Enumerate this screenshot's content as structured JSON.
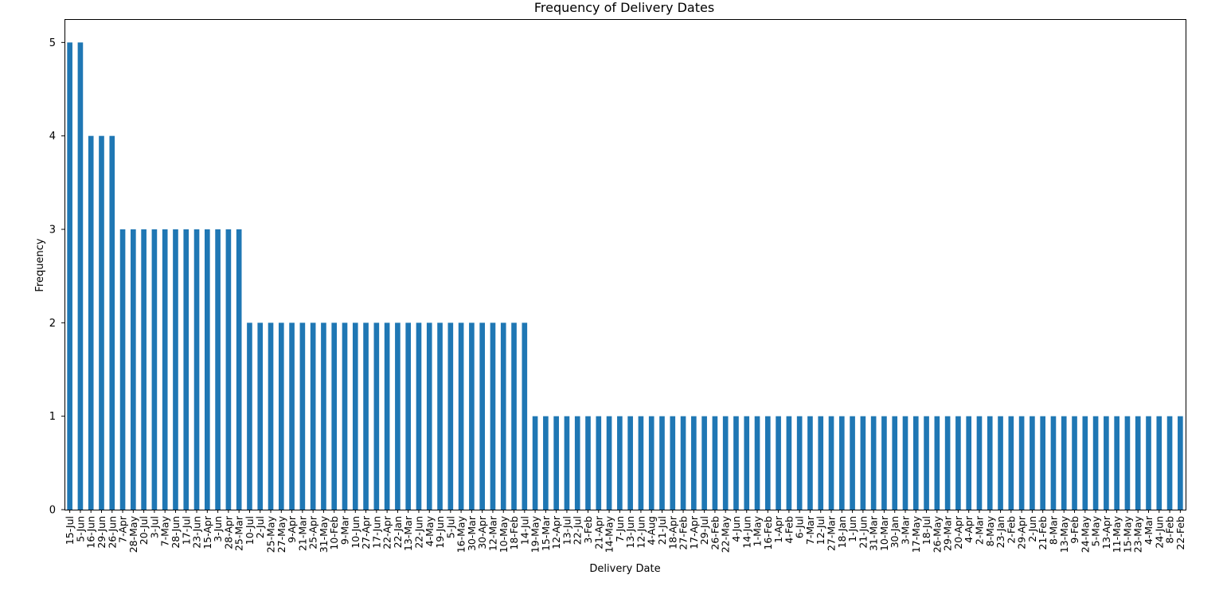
{
  "chart_data": {
    "type": "bar",
    "title": "Frequency of Delivery Dates",
    "xlabel": "Delivery Date",
    "ylabel": "Frequency",
    "ylim": [
      0,
      5.25
    ],
    "yticks": [
      0,
      1,
      2,
      3,
      4,
      5
    ],
    "grid": false,
    "bar_color": "#1f77b4",
    "categories": [
      "15-Jul",
      "5-Jun",
      "16-Jun",
      "29-Jun",
      "26-Jun",
      "7-Apr",
      "28-May",
      "20-Jul",
      "3-Jul",
      "7-May",
      "28-Jun",
      "17-Jul",
      "23-Jun",
      "15-Apr",
      "3-Jun",
      "28-Apr",
      "25-Mar",
      "10-Jul",
      "2-Jul",
      "25-May",
      "27-May",
      "9-Apr",
      "21-Mar",
      "25-Apr",
      "31-May",
      "10-Feb",
      "9-Mar",
      "10-Jun",
      "27-Apr",
      "17-Jun",
      "22-Apr",
      "22-Jan",
      "13-Mar",
      "22-Jun",
      "4-May",
      "19-Jun",
      "5-Jul",
      "16-May",
      "30-Mar",
      "30-Apr",
      "12-Mar",
      "10-May",
      "18-Feb",
      "14-Jul",
      "19-May",
      "15-Mar",
      "12-Apr",
      "13-Jul",
      "22-Jul",
      "3-Feb",
      "21-Apr",
      "14-May",
      "7-Jun",
      "13-Jun",
      "12-Jun",
      "4-Aug",
      "21-Jul",
      "18-Apr",
      "27-Feb",
      "17-Apr",
      "29-Jul",
      "26-Feb",
      "22-May",
      "4-Jun",
      "14-Jun",
      "1-May",
      "16-Feb",
      "1-Apr",
      "4-Feb",
      "6-Jul",
      "7-Mar",
      "12-Jul",
      "27-Mar",
      "18-Jan",
      "1-Jun",
      "21-Jun",
      "31-Mar",
      "10-Mar",
      "30-Jan",
      "3-Mar",
      "17-May",
      "18-Jul",
      "26-May",
      "29-Mar",
      "20-Apr",
      "4-Apr",
      "2-Mar",
      "8-May",
      "23-Jan",
      "2-Feb",
      "29-Apr",
      "2-Jun",
      "21-Feb",
      "8-Mar",
      "13-May",
      "9-Feb",
      "24-May",
      "5-May",
      "13-Apr",
      "11-May",
      "15-May",
      "23-May",
      "4-Mar",
      "24-Jun",
      "8-Feb",
      "22-Feb"
    ],
    "values": [
      5,
      5,
      4,
      4,
      4,
      3,
      3,
      3,
      3,
      3,
      3,
      3,
      3,
      3,
      3,
      3,
      3,
      2,
      2,
      2,
      2,
      2,
      2,
      2,
      2,
      2,
      2,
      2,
      2,
      2,
      2,
      2,
      2,
      2,
      2,
      2,
      2,
      2,
      2,
      2,
      2,
      2,
      2,
      2,
      1,
      1,
      1,
      1,
      1,
      1,
      1,
      1,
      1,
      1,
      1,
      1,
      1,
      1,
      1,
      1,
      1,
      1,
      1,
      1,
      1,
      1,
      1,
      1,
      1,
      1,
      1,
      1,
      1,
      1,
      1,
      1,
      1,
      1,
      1,
      1,
      1,
      1,
      1,
      1,
      1,
      1,
      1,
      1,
      1,
      1,
      1,
      1,
      1,
      1,
      1,
      1,
      1,
      1,
      1,
      1,
      1,
      1,
      1,
      1,
      1,
      1
    ]
  }
}
